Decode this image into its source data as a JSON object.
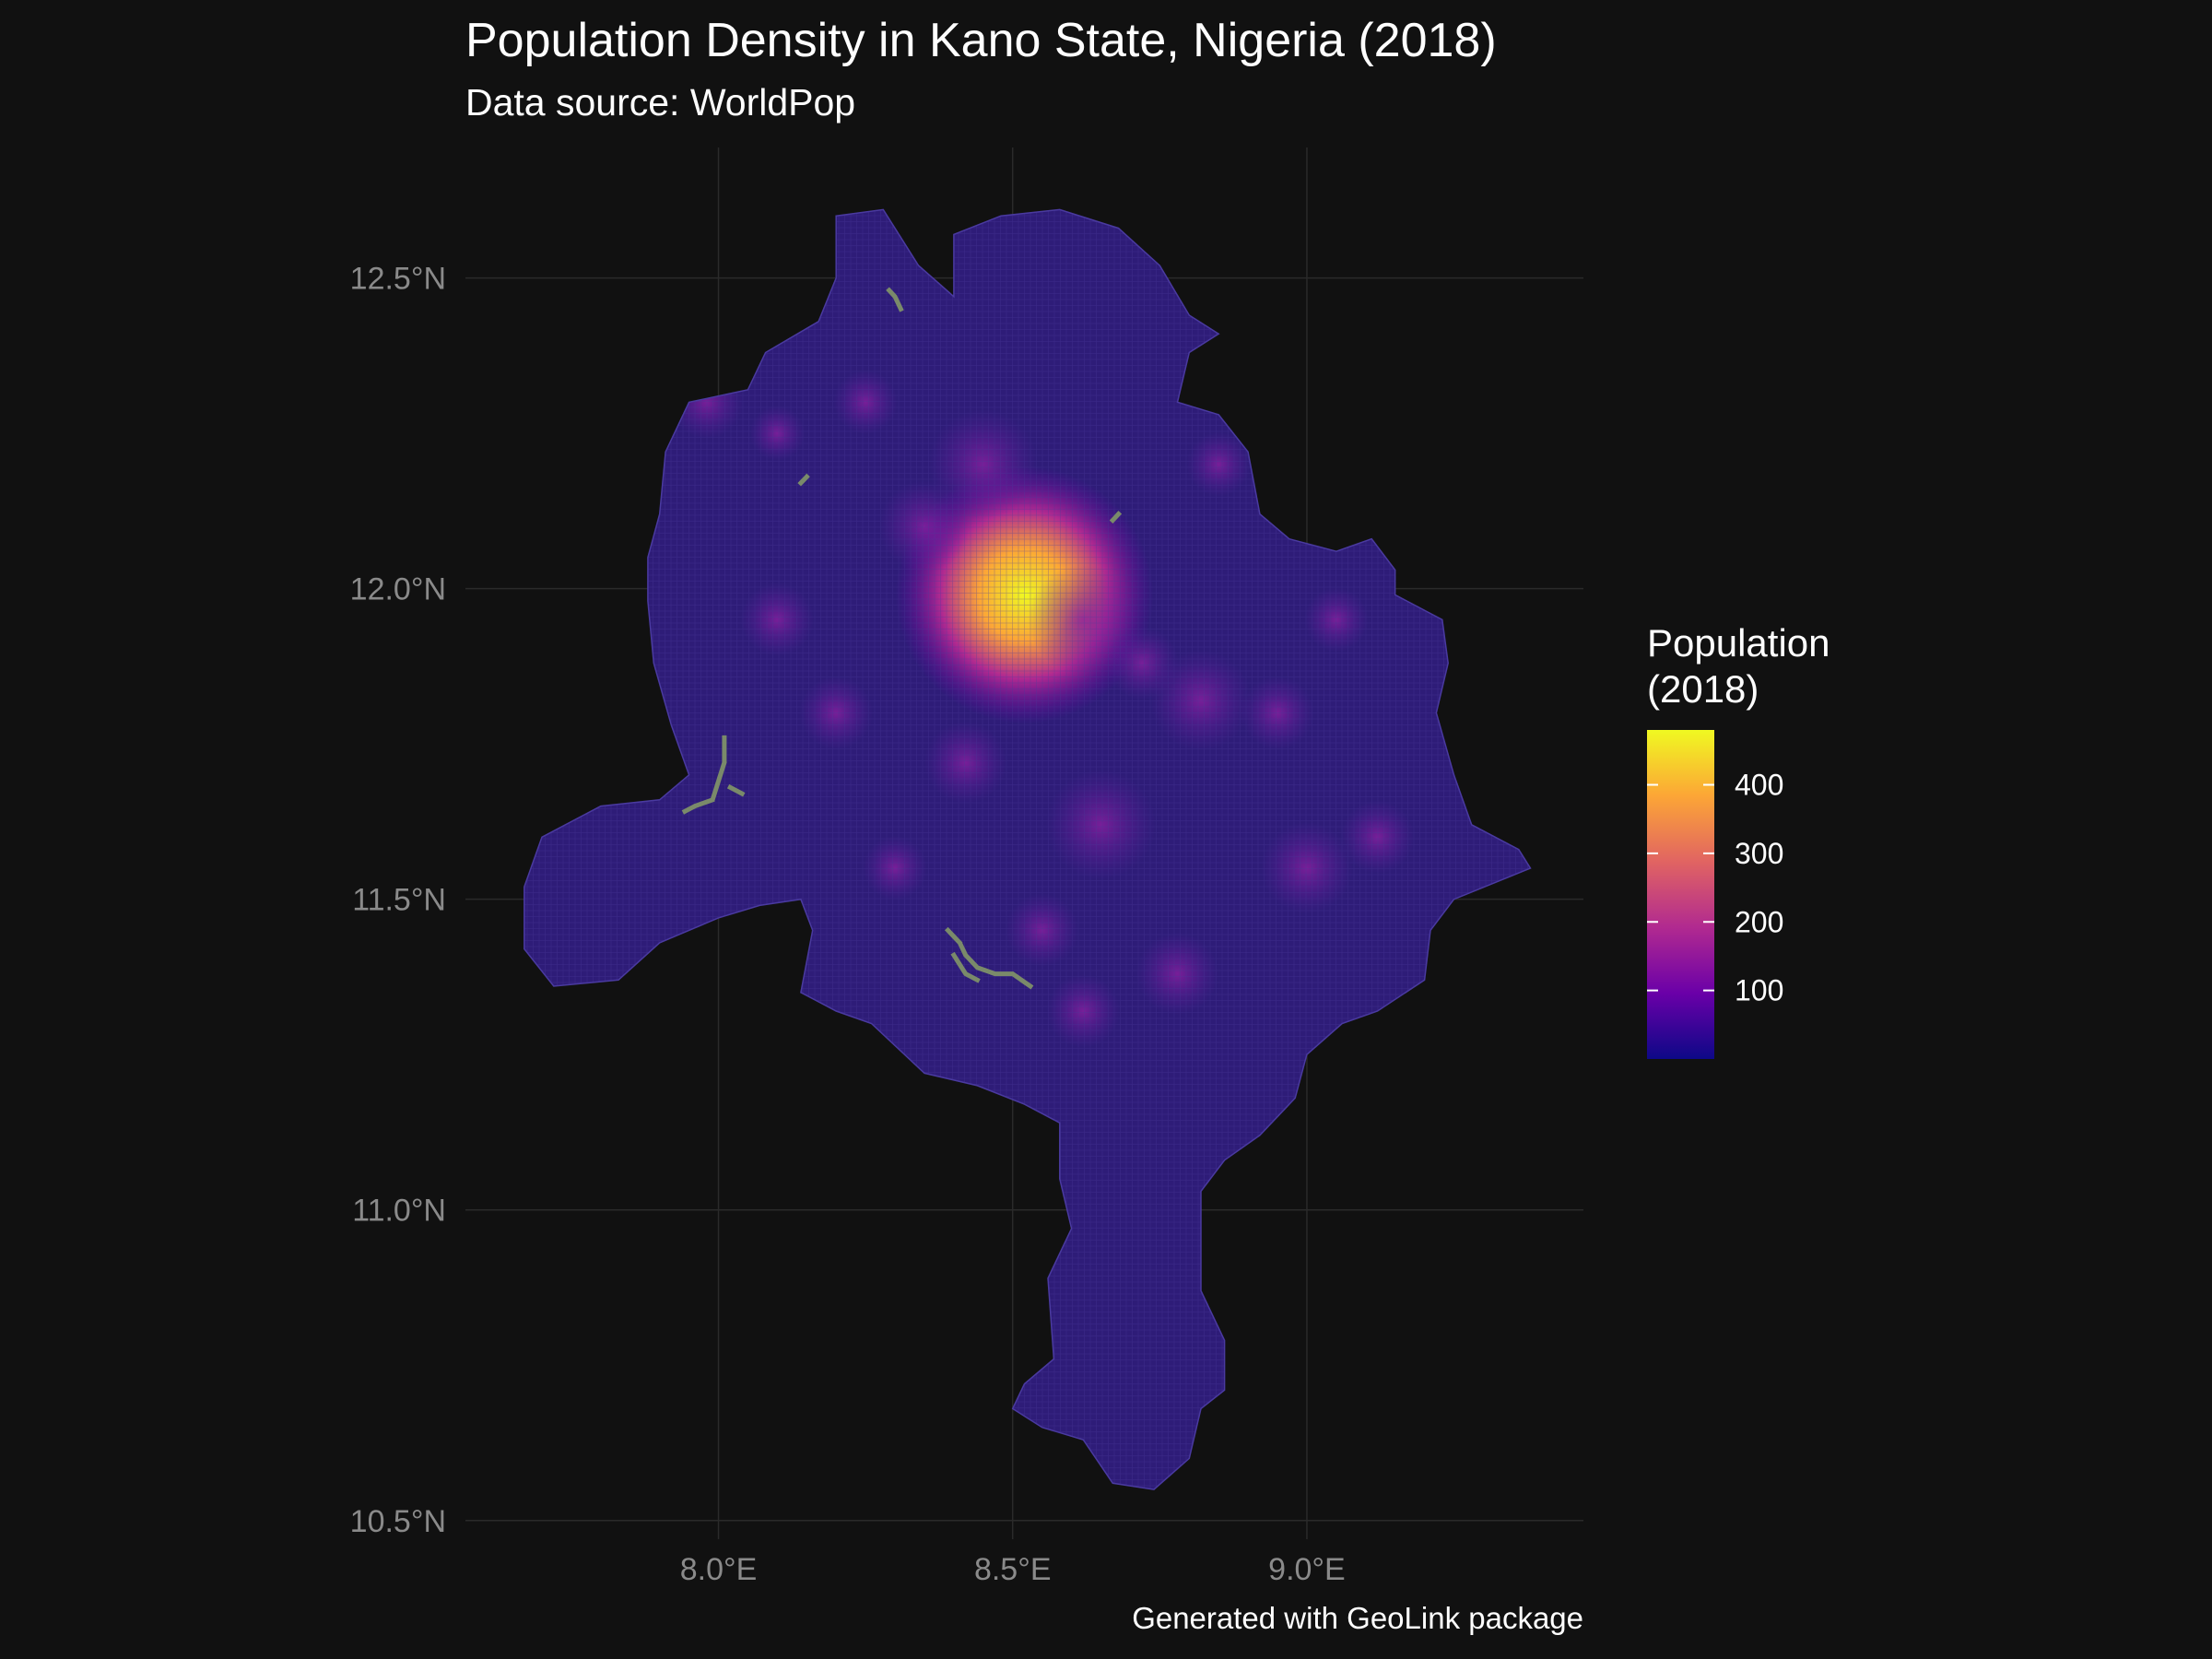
{
  "title": "Population Density in Kano State, Nigeria (2018)",
  "subtitle": "Data source: WorldPop",
  "caption": "Generated with GeoLink package",
  "chart_data": {
    "type": "heatmap",
    "x_ticks": [
      "8.0°E",
      "8.5°E",
      "9.0°E"
    ],
    "x_tick_values": [
      8.0,
      8.5,
      9.0
    ],
    "y_ticks": [
      "12.5°N",
      "12.0°N",
      "11.5°N",
      "11.0°N",
      "10.5°N"
    ],
    "y_tick_values": [
      12.5,
      12.0,
      11.5,
      11.0,
      10.5
    ],
    "xlim": [
      7.57,
      9.47
    ],
    "ylim": [
      10.47,
      12.71
    ],
    "grid": true,
    "legend": {
      "title_line1": "Population",
      "title_line2": "(2018)",
      "ticks": [
        "400",
        "300",
        "200",
        "100"
      ],
      "tick_values": [
        400,
        300,
        200,
        100
      ],
      "range": [
        0,
        480
      ],
      "placement": "right",
      "colors": [
        "#0d0887",
        "#6a00a8",
        "#b12a90",
        "#e16462",
        "#fca636",
        "#f0f921"
      ]
    },
    "base_color": "#2e1c78",
    "highlight": {
      "name": "Kano",
      "lon": 8.5,
      "lat": 11.98,
      "value": 470
    },
    "water_color": "#7a8a6a",
    "boundary_lonlat": [
      [
        8.2,
        12.6
      ],
      [
        8.28,
        12.61
      ],
      [
        8.34,
        12.52
      ],
      [
        8.4,
        12.47
      ],
      [
        8.4,
        12.57
      ],
      [
        8.48,
        12.6
      ],
      [
        8.58,
        12.61
      ],
      [
        8.68,
        12.58
      ],
      [
        8.75,
        12.52
      ],
      [
        8.8,
        12.44
      ],
      [
        8.85,
        12.41
      ],
      [
        8.8,
        12.38
      ],
      [
        8.78,
        12.3
      ],
      [
        8.85,
        12.28
      ],
      [
        8.9,
        12.22
      ],
      [
        8.92,
        12.12
      ],
      [
        8.97,
        12.08
      ],
      [
        9.05,
        12.06
      ],
      [
        9.11,
        12.08
      ],
      [
        9.15,
        12.03
      ],
      [
        9.15,
        11.99
      ],
      [
        9.23,
        11.95
      ],
      [
        9.24,
        11.88
      ],
      [
        9.22,
        11.8
      ],
      [
        9.25,
        11.7
      ],
      [
        9.28,
        11.62
      ],
      [
        9.36,
        11.58
      ],
      [
        9.38,
        11.55
      ],
      [
        9.25,
        11.5
      ],
      [
        9.21,
        11.45
      ],
      [
        9.2,
        11.37
      ],
      [
        9.12,
        11.32
      ],
      [
        9.06,
        11.3
      ],
      [
        9.0,
        11.25
      ],
      [
        8.98,
        11.18
      ],
      [
        8.92,
        11.12
      ],
      [
        8.86,
        11.08
      ],
      [
        8.82,
        11.03
      ],
      [
        8.82,
        10.96
      ],
      [
        8.82,
        10.87
      ],
      [
        8.86,
        10.79
      ],
      [
        8.86,
        10.71
      ],
      [
        8.82,
        10.68
      ],
      [
        8.8,
        10.6
      ],
      [
        8.74,
        10.55
      ],
      [
        8.67,
        10.56
      ],
      [
        8.62,
        10.63
      ],
      [
        8.55,
        10.65
      ],
      [
        8.5,
        10.68
      ],
      [
        8.52,
        10.72
      ],
      [
        8.57,
        10.76
      ],
      [
        8.56,
        10.89
      ],
      [
        8.6,
        10.97
      ],
      [
        8.58,
        11.05
      ],
      [
        8.58,
        11.14
      ],
      [
        8.52,
        11.17
      ],
      [
        8.44,
        11.2
      ],
      [
        8.35,
        11.22
      ],
      [
        8.26,
        11.3
      ],
      [
        8.2,
        11.32
      ],
      [
        8.14,
        11.35
      ],
      [
        8.16,
        11.45
      ],
      [
        8.14,
        11.5
      ],
      [
        8.07,
        11.49
      ],
      [
        8.0,
        11.47
      ],
      [
        7.9,
        11.43
      ],
      [
        7.83,
        11.37
      ],
      [
        7.72,
        11.36
      ],
      [
        7.67,
        11.42
      ],
      [
        7.67,
        11.52
      ],
      [
        7.7,
        11.6
      ],
      [
        7.8,
        11.65
      ],
      [
        7.9,
        11.66
      ],
      [
        7.95,
        11.7
      ],
      [
        7.92,
        11.78
      ],
      [
        7.89,
        11.88
      ],
      [
        7.88,
        11.98
      ],
      [
        7.88,
        12.05
      ],
      [
        7.9,
        12.12
      ],
      [
        7.91,
        12.22
      ],
      [
        7.95,
        12.3
      ],
      [
        8.05,
        12.32
      ],
      [
        8.08,
        12.38
      ],
      [
        8.17,
        12.43
      ],
      [
        8.2,
        12.5
      ],
      [
        8.2,
        12.6
      ]
    ],
    "hotspots_lonlat": [
      [
        8.52,
        11.99,
        140,
        0.09
      ],
      [
        8.45,
        12.2,
        60,
        0.05
      ],
      [
        7.98,
        12.3,
        40,
        0.05
      ],
      [
        8.1,
        12.25,
        30,
        0.04
      ],
      [
        8.35,
        12.1,
        50,
        0.05
      ],
      [
        8.62,
        11.95,
        60,
        0.05
      ],
      [
        8.72,
        11.88,
        40,
        0.05
      ],
      [
        8.82,
        11.82,
        55,
        0.05
      ],
      [
        8.95,
        11.8,
        40,
        0.05
      ],
      [
        8.65,
        11.62,
        60,
        0.05
      ],
      [
        8.42,
        11.72,
        45,
        0.05
      ],
      [
        8.2,
        11.8,
        40,
        0.05
      ],
      [
        8.1,
        11.95,
        40,
        0.05
      ],
      [
        9.0,
        11.55,
        50,
        0.05
      ],
      [
        9.12,
        11.6,
        40,
        0.04
      ],
      [
        8.55,
        11.45,
        40,
        0.05
      ],
      [
        8.78,
        11.38,
        45,
        0.05
      ],
      [
        8.62,
        11.32,
        40,
        0.05
      ],
      [
        8.3,
        11.55,
        35,
        0.05
      ],
      [
        8.25,
        12.3,
        35,
        0.04
      ],
      [
        8.85,
        12.2,
        35,
        0.05
      ],
      [
        9.05,
        11.95,
        35,
        0.04
      ]
    ],
    "water_features_lonlat": [
      [
        [
          8.29,
          12.48
        ],
        [
          8.3,
          12.47
        ],
        [
          8.31,
          12.45
        ]
      ],
      [
        [
          8.14,
          12.17
        ],
        [
          8.15,
          12.18
        ]
      ],
      [
        [
          8.67,
          12.11
        ],
        [
          8.68,
          12.12
        ]
      ],
      [
        [
          8.01,
          11.76
        ],
        [
          8.01,
          11.72
        ],
        [
          8.0,
          11.69
        ],
        [
          7.99,
          11.66
        ],
        [
          7.96,
          11.65
        ],
        [
          7.94,
          11.64
        ]
      ],
      [
        [
          8.02,
          11.68
        ],
        [
          8.04,
          11.67
        ]
      ],
      [
        [
          8.39,
          11.45
        ],
        [
          8.41,
          11.43
        ],
        [
          8.42,
          11.41
        ],
        [
          8.44,
          11.39
        ],
        [
          8.47,
          11.38
        ],
        [
          8.5,
          11.38
        ],
        [
          8.53,
          11.36
        ]
      ],
      [
        [
          8.4,
          11.41
        ],
        [
          8.42,
          11.38
        ],
        [
          8.44,
          11.37
        ]
      ]
    ]
  }
}
